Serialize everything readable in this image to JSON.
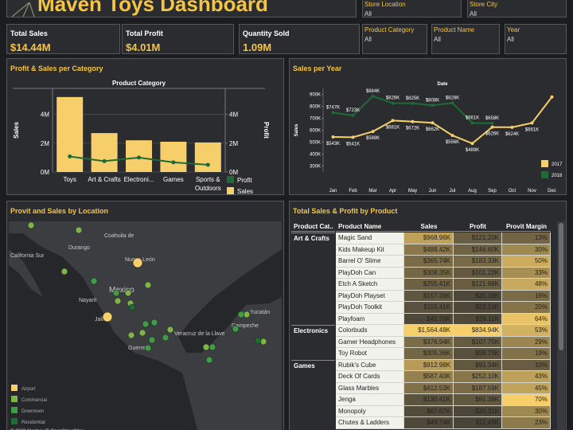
{
  "header": {
    "title": "Maven Toys Dashboard"
  },
  "filters": [
    {
      "label": "Store Location",
      "value": "All"
    },
    {
      "label": "Store City",
      "value": "All"
    },
    {
      "label": "Product Category",
      "value": "All"
    },
    {
      "label": "Product Name",
      "value": "All"
    },
    {
      "label": "Year",
      "value": "All"
    }
  ],
  "kpis": [
    {
      "label": "Total Sales",
      "value": "$14.44M"
    },
    {
      "label": "Total Profit",
      "value": "$4.01M"
    },
    {
      "label": "Quantity Sold",
      "value": "1.09M"
    }
  ],
  "chart_data": [
    {
      "type": "combo",
      "title": "Profit & Sales per Category",
      "header": "Product Category",
      "y_label": "Sales",
      "y2_label": "Profit",
      "categories": [
        "Toys",
        "Art & Crafts",
        "Electroni...",
        "Games",
        "Sports & Outdoors"
      ],
      "series": [
        {
          "name": "Profit",
          "color": "#1f6b35",
          "kind": "line",
          "axis": "y2",
          "values": [
            1080000,
            750000,
            1000000,
            670000,
            500000
          ]
        },
        {
          "name": "Sales",
          "color": "#f6cf6b",
          "kind": "bar",
          "values": [
            5200000,
            2700000,
            2200000,
            2100000,
            2050000
          ]
        }
      ],
      "ylim": [
        0,
        5800000
      ],
      "yticks": [
        {
          "value": 0,
          "label": "0M"
        },
        {
          "value": 2000000,
          "label": "2M"
        },
        {
          "value": 4000000,
          "label": "4M"
        }
      ],
      "y2lim": [
        0,
        5800000
      ],
      "y2ticks": [
        {
          "value": 0,
          "label": "0M"
        },
        {
          "value": 2000000,
          "label": "2M"
        },
        {
          "value": 4000000,
          "label": "4M"
        }
      ],
      "legend": "bottom-right"
    },
    {
      "type": "line",
      "title": "Sales per Year",
      "header": "Date",
      "y_label": "Sales",
      "categories": [
        "Jan",
        "Feb",
        "Mar",
        "Apr",
        "May",
        "Jun",
        "Jul",
        "Aug",
        "Sep",
        "Oct",
        "Nov",
        "Dec"
      ],
      "series": [
        {
          "name": "2017",
          "color": "#f6cf6b",
          "values": [
            543000,
            541000,
            589000,
            681000,
            672000,
            662000,
            556000,
            489000,
            626000,
            624000,
            661000,
            878000
          ],
          "value_labels": [
            "$543K",
            "$541K",
            "$589K",
            "$681K",
            "$672K",
            "$662K",
            "$556K",
            "$489K",
            "$626K",
            "$624K",
            "$661K",
            null
          ]
        },
        {
          "name": "2018",
          "color": "#1f6b35",
          "values": [
            747000,
            723000,
            884000,
            826000,
            825000,
            808000,
            828000,
            661000,
            658000,
            null,
            null,
            null
          ],
          "value_labels": [
            "$747K",
            "$723K",
            "$884K",
            "$826K",
            "$825K",
            "$808K",
            "$828K",
            "$661K",
            "$658K",
            null,
            null,
            null
          ]
        }
      ],
      "ylim": [
        250000,
        950000
      ],
      "yticks": [
        {
          "value": 300000,
          "label": "300K"
        },
        {
          "value": 400000,
          "label": "400K"
        },
        {
          "value": 500000,
          "label": "500K"
        },
        {
          "value": 600000,
          "label": "600K"
        },
        {
          "value": 700000,
          "label": "700K"
        },
        {
          "value": 800000,
          "label": "800K"
        },
        {
          "value": 900000,
          "label": "900K"
        }
      ],
      "legend": "bottom-right"
    }
  ],
  "map": {
    "title": "Provit and Sales by Location",
    "places": [
      "Coahuila de",
      "Durango",
      "California Sur",
      "Nuevo León",
      "Mexico",
      "Nayarit",
      "Jalisco",
      "Veracruz de la Llave",
      "Guerrero",
      "Campeche",
      "Yucatán"
    ],
    "legend": [
      {
        "name": "Airport",
        "color": "#f6cf6b"
      },
      {
        "name": "Commercial",
        "color": "#7fb546"
      },
      {
        "name": "Downtown",
        "color": "#3f9e45"
      },
      {
        "name": "Residential",
        "color": "#1f6b35"
      }
    ],
    "attribution": "© 2023 Mapbox © OpenStreetMap"
  },
  "table": {
    "title": "Total Sales  & Profit by Product",
    "columns": [
      "Product Cat..",
      "Product Name",
      "Sales",
      "Profit",
      "Provit Margin"
    ],
    "groups": [
      {
        "category": "Art & Crafts",
        "rows": [
          [
            "Magic Sand",
            "$968.96K",
            "$121.20K",
            "13%"
          ],
          [
            "Kids Makeup Kit",
            "$488.42K",
            "$146.60K",
            "30%"
          ],
          [
            "Barrel O' Slime",
            "$365.74K",
            "$183.33K",
            "50%"
          ],
          [
            "PlayDoh Can",
            "$308.35K",
            "$101.22K",
            "33%"
          ],
          [
            "Etch A Sketch",
            "$255.41K",
            "$121.68K",
            "48%"
          ],
          [
            "PlayDoh Playset",
            "$157.39K",
            "$25.19K",
            "16%"
          ],
          [
            "PlayDoh Toolkit",
            "$115.41K",
            "$23.13K",
            "20%"
          ],
          [
            "Playfoam",
            "$45.70K",
            "$29.11K",
            "64%"
          ]
        ]
      },
      {
        "category": "Electronics",
        "rows": [
          [
            "Colorbuds",
            "$1,564.48K",
            "$834.94K",
            "53%"
          ],
          [
            "Gamer Headphones",
            "$376.94K",
            "$107.75K",
            "29%"
          ],
          [
            "Toy Robot",
            "$305.36K",
            "$58.75K",
            "19%"
          ]
        ]
      },
      {
        "category": "Games",
        "rows": [
          [
            "Rubik's Cube",
            "$912.98K",
            "$91.34K",
            "10%"
          ],
          [
            "Deck Of Cards",
            "$587.40K",
            "$252.10K",
            "43%"
          ],
          [
            "Glass Marbles",
            "$412.53K",
            "$187.59K",
            "45%"
          ],
          [
            "Jenga",
            "$130.41K",
            "$91.38K",
            "70%"
          ],
          [
            "Monopoly",
            "$67.67K",
            "$20.31K",
            "30%"
          ],
          [
            "Chutes & Ladders",
            "$49.74K",
            "$11.49K",
            "23%"
          ]
        ]
      }
    ]
  }
}
